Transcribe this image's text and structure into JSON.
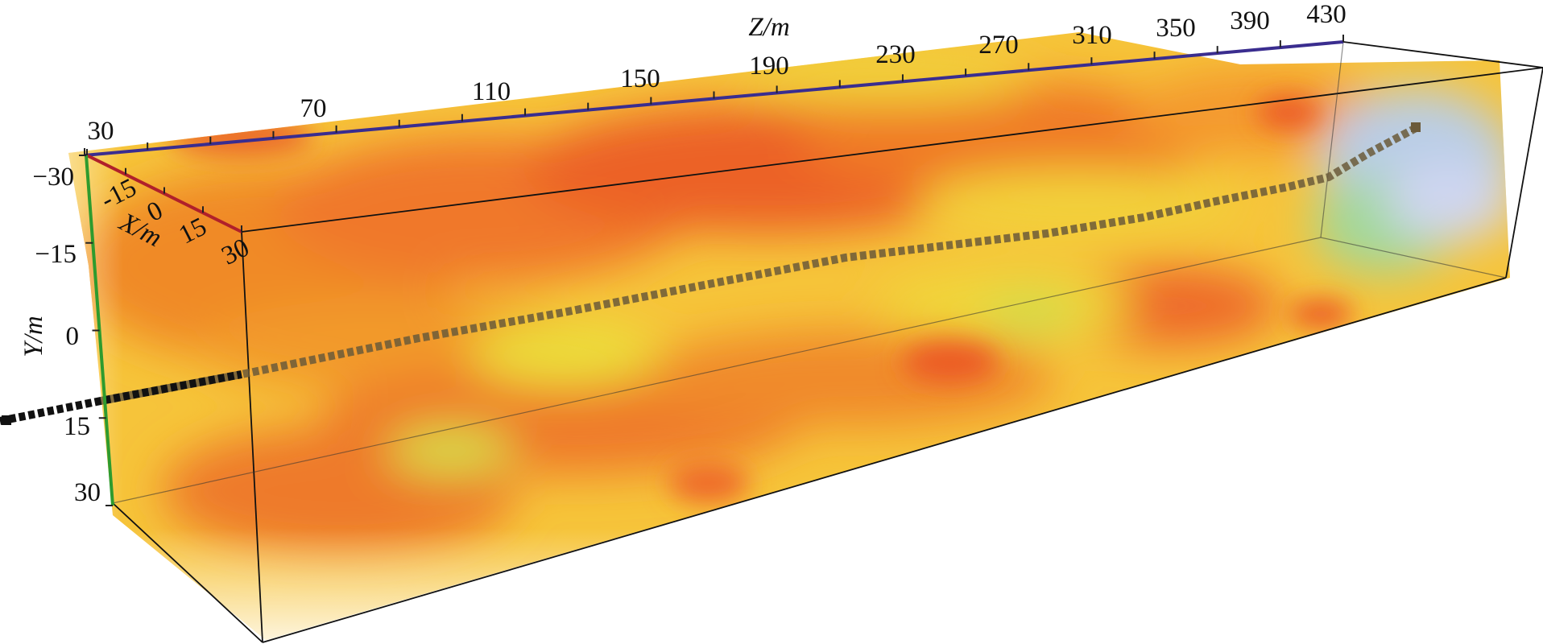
{
  "axes": {
    "z": {
      "title": "Z/m",
      "color": "#3a2d8f",
      "tick_labels": [
        "30",
        "70",
        "110",
        "150",
        "190",
        "230",
        "270",
        "310",
        "350",
        "390",
        "430"
      ]
    },
    "x": {
      "title": "X/m",
      "color": "#b0202a",
      "tick_labels": [
        "-15",
        "0",
        "15",
        "30"
      ]
    },
    "y": {
      "title": "Y/m",
      "color": "#2e9b2e",
      "tick_labels": [
        "−30",
        "−15",
        "0",
        "15",
        "30"
      ]
    }
  },
  "volume": {
    "colormap": [
      "#e8461f",
      "#f07a22",
      "#f4b42a",
      "#f2df3a",
      "#cfe04a",
      "#9ad29a",
      "#b8c8ec"
    ]
  },
  "tunnel": {
    "color_outside": "#111111",
    "color_inside": "#6b5a3a"
  }
}
